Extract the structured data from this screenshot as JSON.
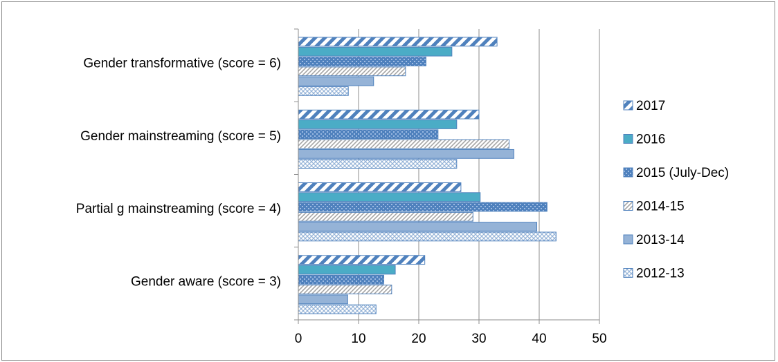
{
  "chart_data": {
    "type": "bar",
    "orientation": "horizontal",
    "categories": [
      "Gender transformative (score = 6)",
      "Gender mainstreaming (score = 5)",
      "Partial g mainstreaming (score = 4)",
      "Gender aware (score = 3)"
    ],
    "series": [
      {
        "name": "2017",
        "values": [
          33,
          30,
          27,
          21
        ],
        "pattern": "wide-diagonal-stripes",
        "color": "#4f81bd"
      },
      {
        "name": "2016",
        "values": [
          25.5,
          26.3,
          30.2,
          16.1
        ],
        "pattern": "solid",
        "color": "#4bacc6"
      },
      {
        "name": "2015 (July-Dec)",
        "values": [
          21.2,
          23.2,
          41.3,
          14.2
        ],
        "pattern": "dots",
        "color": "#4f81bd"
      },
      {
        "name": "2014-15",
        "values": [
          17.8,
          35,
          29,
          15.5
        ],
        "pattern": "narrow-diagonal-stripes",
        "color": "#b0b0b0"
      },
      {
        "name": "2013-14",
        "values": [
          12.5,
          35.8,
          39.6,
          8.2
        ],
        "pattern": "solid",
        "color": "#95b3d7"
      },
      {
        "name": "2012-13",
        "values": [
          8.3,
          26.3,
          42.8,
          12.9
        ],
        "pattern": "cross-hatch",
        "color": "#95b3d7"
      }
    ],
    "xlim": [
      0,
      50
    ],
    "x_ticks": [
      "0",
      "10",
      "20",
      "30",
      "40",
      "50"
    ],
    "grid": "vertical major gridlines",
    "legend_position": "right",
    "title": "",
    "xlabel": "",
    "ylabel": ""
  }
}
